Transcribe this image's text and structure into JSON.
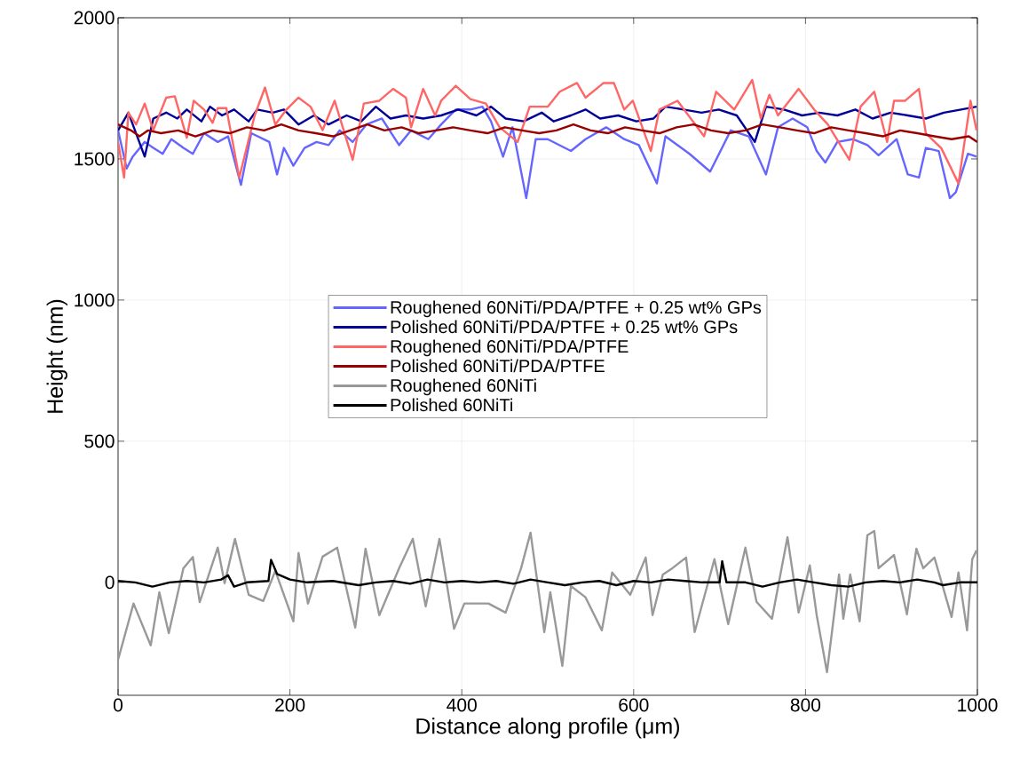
{
  "chart_data": {
    "type": "line",
    "xlabel": "Distance along profile (μm)",
    "ylabel": "Height (nm)",
    "xlim": [
      0,
      1000
    ],
    "ylim": [
      -400,
      2000
    ],
    "xticks": [
      0,
      200,
      400,
      600,
      800,
      1000
    ],
    "yticks": [
      0,
      500,
      1000,
      1500,
      2000
    ],
    "grid": true,
    "legend": "center",
    "series": [
      {
        "name": "Roughened 60NiTi/PDA/PTFE + 0.25 wt% GPs",
        "color": "#6666ff",
        "x": [
          0,
          10,
          17,
          31,
          41,
          52,
          62,
          76,
          87,
          100,
          116,
          128,
          143,
          155,
          176,
          185,
          193,
          204,
          217,
          231,
          245,
          258,
          273,
          289,
          307,
          327,
          341,
          361,
          376,
          393,
          410,
          424,
          434,
          448,
          459,
          475,
          486,
          500,
          527,
          544,
          568,
          589,
          606,
          627,
          637,
          665,
          689,
          713,
          734,
          754,
          768,
          785,
          802,
          813,
          823,
          837,
          855,
          872,
          885,
          906,
          919,
          932,
          940,
          955,
          968,
          975,
          989,
          999
        ],
        "values": [
          1601,
          1466,
          1508,
          1560,
          1539,
          1518,
          1570,
          1539,
          1518,
          1591,
          1560,
          1580,
          1408,
          1591,
          1560,
          1445,
          1539,
          1476,
          1539,
          1560,
          1549,
          1601,
          1560,
          1622,
          1643,
          1549,
          1601,
          1570,
          1622,
          1675,
          1675,
          1685,
          1633,
          1508,
          1612,
          1361,
          1570,
          1570,
          1528,
          1570,
          1612,
          1570,
          1549,
          1413,
          1580,
          1518,
          1455,
          1601,
          1580,
          1445,
          1612,
          1643,
          1612,
          1528,
          1487,
          1560,
          1570,
          1549,
          1513,
          1570,
          1445,
          1434,
          1539,
          1528,
          1361,
          1382,
          1518,
          1508
        ]
      },
      {
        "name": "Polished 60NiTi/PDA/PTFE + 0.25 wt% GPs",
        "color": "#000099",
        "x": [
          0,
          12,
          31,
          41,
          56,
          69,
          80,
          97,
          107,
          121,
          135,
          152,
          162,
          180,
          193,
          210,
          228,
          245,
          266,
          283,
          300,
          317,
          335,
          355,
          376,
          396,
          417,
          434,
          451,
          472,
          493,
          507,
          527,
          544,
          561,
          582,
          603,
          623,
          637,
          658,
          679,
          699,
          720,
          741,
          754,
          775,
          796,
          816,
          837,
          858,
          878,
          899,
          919,
          940,
          961,
          981,
          999
        ],
        "values": [
          1601,
          1664,
          1508,
          1643,
          1664,
          1643,
          1675,
          1633,
          1685,
          1654,
          1675,
          1633,
          1675,
          1664,
          1675,
          1622,
          1654,
          1622,
          1654,
          1633,
          1685,
          1643,
          1654,
          1643,
          1654,
          1675,
          1654,
          1685,
          1643,
          1633,
          1664,
          1633,
          1654,
          1675,
          1643,
          1654,
          1633,
          1643,
          1685,
          1675,
          1664,
          1675,
          1654,
          1560,
          1685,
          1675,
          1654,
          1664,
          1654,
          1675,
          1643,
          1664,
          1654,
          1643,
          1664,
          1675,
          1685
        ]
      },
      {
        "name": "Roughened 60NiTi/PDA/PTFE",
        "color": "#ff6666",
        "x": [
          0,
          7,
          12,
          21,
          31,
          41,
          56,
          66,
          80,
          88,
          100,
          110,
          116,
          126,
          141,
          159,
          171,
          183,
          196,
          210,
          224,
          238,
          252,
          273,
          286,
          304,
          320,
          335,
          341,
          355,
          369,
          376,
          393,
          410,
          428,
          444,
          465,
          479,
          500,
          514,
          534,
          544,
          565,
          577,
          589,
          599,
          620,
          630,
          651,
          682,
          696,
          717,
          738,
          748,
          758,
          768,
          792,
          810,
          826,
          851,
          864,
          880,
          895,
          903,
          916,
          932,
          940,
          958,
          978,
          992,
          999
        ],
        "values": [
          1560,
          1434,
          1664,
          1622,
          1696,
          1602,
          1717,
          1722,
          1575,
          1706,
          1675,
          1628,
          1680,
          1680,
          1434,
          1654,
          1753,
          1622,
          1675,
          1717,
          1685,
          1602,
          1706,
          1497,
          1696,
          1706,
          1748,
          1717,
          1612,
          1748,
          1654,
          1706,
          1759,
          1712,
          1696,
          1612,
          1560,
          1685,
          1685,
          1738,
          1769,
          1717,
          1769,
          1769,
          1675,
          1706,
          1528,
          1675,
          1706,
          1580,
          1738,
          1675,
          1780,
          1643,
          1727,
          1654,
          1748,
          1675,
          1622,
          1497,
          1685,
          1738,
          1560,
          1706,
          1706,
          1748,
          1591,
          1538,
          1413,
          1706,
          1601
        ]
      },
      {
        "name": "Polished 60NiTi/PDA/PTFE",
        "color": "#990000",
        "x": [
          0,
          15,
          25,
          35,
          50,
          70,
          90,
          110,
          130,
          150,
          170,
          190,
          210,
          230,
          250,
          270,
          290,
          310,
          330,
          350,
          370,
          390,
          410,
          430,
          450,
          470,
          490,
          510,
          530,
          550,
          570,
          590,
          610,
          630,
          650,
          670,
          690,
          710,
          730,
          750,
          770,
          790,
          810,
          830,
          850,
          870,
          890,
          910,
          930,
          950,
          970,
          990,
          1000
        ],
        "values": [
          1622,
          1601,
          1580,
          1601,
          1591,
          1601,
          1580,
          1601,
          1591,
          1612,
          1601,
          1622,
          1601,
          1591,
          1580,
          1601,
          1622,
          1601,
          1612,
          1591,
          1601,
          1612,
          1601,
          1591,
          1612,
          1601,
          1591,
          1601,
          1622,
          1601,
          1591,
          1612,
          1601,
          1591,
          1612,
          1622,
          1601,
          1591,
          1601,
          1622,
          1612,
          1601,
          1591,
          1612,
          1601,
          1591,
          1580,
          1601,
          1591,
          1580,
          1570,
          1580,
          1560
        ]
      },
      {
        "name": "Roughened 60NiTi",
        "color": "#999999",
        "x": [
          0,
          18,
          38,
          48,
          59,
          76,
          87,
          95,
          116,
          124,
          136,
          152,
          169,
          183,
          204,
          210,
          221,
          238,
          255,
          276,
          288,
          304,
          327,
          343,
          358,
          374,
          391,
          403,
          431,
          451,
          469,
          480,
          496,
          503,
          517,
          527,
          544,
          563,
          575,
          596,
          614,
          622,
          634,
          645,
          661,
          671,
          694,
          710,
          730,
          743,
          761,
          779,
          792,
          805,
          813,
          825,
          839,
          844,
          852,
          863,
          872,
          880,
          885,
          903,
          918,
          929,
          937,
          950,
          970,
          978,
          988,
          994,
          999
        ],
        "values": [
          -274,
          -75,
          -223,
          -35,
          -180,
          50,
          90,
          -70,
          123,
          -3,
          154,
          -44,
          -66,
          41,
          -138,
          104,
          -75,
          91,
          123,
          -160,
          119,
          -116,
          50,
          154,
          -85,
          154,
          -164,
          -75,
          -75,
          -107,
          50,
          176,
          -176,
          -35,
          -296,
          -13,
          -53,
          -170,
          35,
          -44,
          88,
          -116,
          28,
          50,
          88,
          -176,
          82,
          -148,
          123,
          -69,
          -129,
          160,
          -107,
          60,
          -116,
          -318,
          28,
          -129,
          28,
          -138,
          167,
          182,
          50,
          97,
          -113,
          119,
          50,
          88,
          -123,
          35,
          -170,
          82,
          113
        ]
      },
      {
        "name": "Polished 60NiTi",
        "color": "#000000",
        "x": [
          0,
          20,
          40,
          60,
          80,
          100,
          120,
          128,
          135,
          150,
          175,
          178,
          185,
          200,
          220,
          250,
          280,
          300,
          320,
          340,
          360,
          380,
          400,
          420,
          440,
          460,
          480,
          500,
          520,
          540,
          560,
          580,
          600,
          620,
          640,
          660,
          680,
          700,
          703,
          708,
          730,
          750,
          770,
          790,
          810,
          830,
          850,
          870,
          890,
          910,
          930,
          950,
          960,
          980,
          1000
        ],
        "values": [
          5,
          0,
          -15,
          0,
          5,
          0,
          10,
          25,
          -15,
          0,
          5,
          80,
          30,
          10,
          0,
          5,
          -10,
          0,
          5,
          -5,
          10,
          0,
          5,
          0,
          5,
          -5,
          10,
          0,
          -10,
          0,
          5,
          -10,
          5,
          0,
          10,
          5,
          0,
          0,
          75,
          0,
          0,
          -15,
          0,
          10,
          0,
          -10,
          -15,
          0,
          5,
          0,
          10,
          0,
          -10,
          0,
          0
        ]
      }
    ]
  }
}
